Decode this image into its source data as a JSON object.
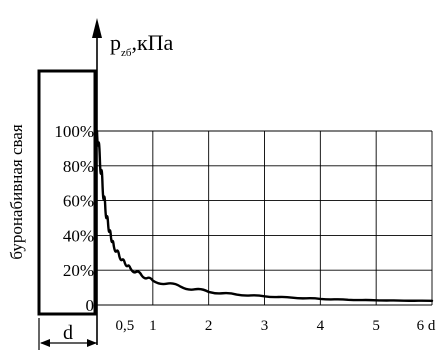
{
  "chart_data": {
    "type": "line",
    "title": "p",
    "title_subscript": "zб",
    "title_suffix": ",кПа",
    "ylabel": "",
    "xlabel": "",
    "y_ticks": [
      {
        "value": 0,
        "label": "0"
      },
      {
        "value": 20,
        "label": "20%"
      },
      {
        "value": 40,
        "label": "40%"
      },
      {
        "value": 60,
        "label": "60%"
      },
      {
        "value": 80,
        "label": "80%"
      },
      {
        "value": 100,
        "label": "100%"
      }
    ],
    "x_ticks": [
      {
        "value": 0.5,
        "label": "0,5"
      },
      {
        "value": 1,
        "label": "1"
      },
      {
        "value": 2,
        "label": "2"
      },
      {
        "value": 3,
        "label": "3"
      },
      {
        "value": 4,
        "label": "4"
      },
      {
        "value": 5,
        "label": "5"
      },
      {
        "value": 6,
        "label": "6 d"
      }
    ],
    "xlim": [
      0,
      6
    ],
    "ylim": [
      0,
      100
    ],
    "grid": true,
    "series": [
      {
        "values": [
          {
            "x": 0.0,
            "y": 100
          },
          {
            "x": 0.05,
            "y": 85
          },
          {
            "x": 0.1,
            "y": 68
          },
          {
            "x": 0.15,
            "y": 55
          },
          {
            "x": 0.2,
            "y": 46
          },
          {
            "x": 0.25,
            "y": 39
          },
          {
            "x": 0.3,
            "y": 34
          },
          {
            "x": 0.4,
            "y": 28
          },
          {
            "x": 0.5,
            "y": 24
          },
          {
            "x": 0.6,
            "y": 21
          },
          {
            "x": 0.8,
            "y": 17
          },
          {
            "x": 1.0,
            "y": 14
          },
          {
            "x": 1.5,
            "y": 10.5
          },
          {
            "x": 2.0,
            "y": 7.5
          },
          {
            "x": 2.5,
            "y": 6
          },
          {
            "x": 3.0,
            "y": 5
          },
          {
            "x": 3.5,
            "y": 4.2
          },
          {
            "x": 4.0,
            "y": 3.5
          },
          {
            "x": 4.5,
            "y": 3
          },
          {
            "x": 5.0,
            "y": 2.7
          },
          {
            "x": 5.5,
            "y": 2.5
          },
          {
            "x": 6.0,
            "y": 2.4
          }
        ]
      }
    ],
    "pile_label": "буронабивная свая",
    "pile_width_label": "d"
  }
}
